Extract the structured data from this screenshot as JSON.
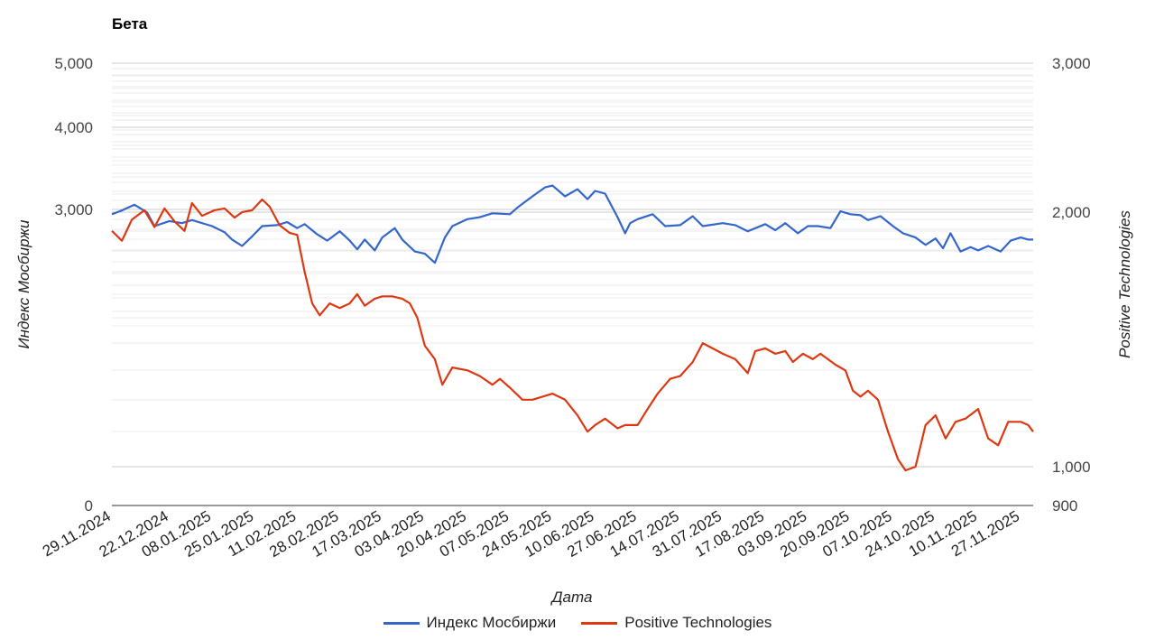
{
  "chart_data": {
    "type": "line",
    "title": "Бета",
    "xlabel": "Дата",
    "y_left_label": "Индекс Мосбиржи",
    "y_right_label": "Positive Technologies",
    "x_tick_labels": [
      "29.11.2024",
      "22.12.2024",
      "08.01.2025",
      "25.01.2025",
      "11.02.2025",
      "28.02.2025",
      "17.03.2025",
      "03.04.2025",
      "20.04.2025",
      "07.05.2025",
      "24.05.2025",
      "10.06.2025",
      "27.06.2025",
      "14.07.2025",
      "31.07.2025",
      "17.08.2025",
      "03.09.2025",
      "20.09.2025",
      "07.10.2025",
      "24.10.2025",
      "10.11.2025",
      "27.11.2025"
    ],
    "y_left_ticks": [
      "0",
      "3,000",
      "4,000",
      "5,000"
    ],
    "y_right_ticks": [
      "900",
      "1,000",
      "2,000",
      "3,000"
    ],
    "y_left_scale": "log",
    "y_right_scale": "log",
    "grid": true,
    "legend_position": "bottom",
    "colors": {
      "moex": "#3366cc",
      "positive": "#dc3912",
      "grid_major": "#cccccc",
      "grid_minor": "#ebebeb"
    },
    "series": [
      {
        "name": "Индекс Мосбиржи",
        "axis": "left",
        "color": "#3366cc",
        "points": [
          [
            "29.11.2024",
            2950
          ],
          [
            "03.12.2024",
            2990
          ],
          [
            "08.12.2024",
            3050
          ],
          [
            "13.12.2024",
            2970
          ],
          [
            "16.12.2024",
            2830
          ],
          [
            "22.12.2024",
            2880
          ],
          [
            "27.12.2024",
            2860
          ],
          [
            "31.12.2024",
            2890
          ],
          [
            "08.01.2025",
            2830
          ],
          [
            "13.01.2025",
            2770
          ],
          [
            "16.01.2025",
            2700
          ],
          [
            "20.01.2025",
            2640
          ],
          [
            "24.01.2025",
            2730
          ],
          [
            "28.01.2025",
            2830
          ],
          [
            "03.02.2025",
            2840
          ],
          [
            "07.02.2025",
            2870
          ],
          [
            "11.02.2025",
            2810
          ],
          [
            "14.02.2025",
            2850
          ],
          [
            "19.02.2025",
            2750
          ],
          [
            "23.02.2025",
            2690
          ],
          [
            "28.02.2025",
            2780
          ],
          [
            "04.03.2025",
            2690
          ],
          [
            "07.03.2025",
            2610
          ],
          [
            "10.03.2025",
            2700
          ],
          [
            "14.03.2025",
            2600
          ],
          [
            "17.03.2025",
            2720
          ],
          [
            "22.03.2025",
            2810
          ],
          [
            "25.03.2025",
            2700
          ],
          [
            "30.03.2025",
            2590
          ],
          [
            "03.04.2025",
            2570
          ],
          [
            "07.04.2025",
            2490
          ],
          [
            "11.04.2025",
            2720
          ],
          [
            "14.04.2025",
            2830
          ],
          [
            "20.04.2025",
            2900
          ],
          [
            "25.04.2025",
            2920
          ],
          [
            "30.04.2025",
            2960
          ],
          [
            "07.05.2025",
            2950
          ],
          [
            "10.05.2025",
            3020
          ],
          [
            "16.05.2025",
            3140
          ],
          [
            "21.05.2025",
            3240
          ],
          [
            "24.05.2025",
            3260
          ],
          [
            "29.05.2025",
            3140
          ],
          [
            "03.06.2025",
            3220
          ],
          [
            "07.06.2025",
            3110
          ],
          [
            "10.06.2025",
            3200
          ],
          [
            "14.06.2025",
            3170
          ],
          [
            "19.06.2025",
            2920
          ],
          [
            "22.06.2025",
            2760
          ],
          [
            "24.06.2025",
            2860
          ],
          [
            "27.06.2025",
            2900
          ],
          [
            "03.07.2025",
            2950
          ],
          [
            "08.07.2025",
            2830
          ],
          [
            "14.07.2025",
            2840
          ],
          [
            "19.07.2025",
            2930
          ],
          [
            "23.07.2025",
            2830
          ],
          [
            "31.07.2025",
            2860
          ],
          [
            "05.08.2025",
            2840
          ],
          [
            "10.08.2025",
            2780
          ],
          [
            "17.08.2025",
            2850
          ],
          [
            "21.08.2025",
            2790
          ],
          [
            "25.08.2025",
            2860
          ],
          [
            "30.08.2025",
            2760
          ],
          [
            "03.09.2025",
            2830
          ],
          [
            "07.09.2025",
            2830
          ],
          [
            "12.09.2025",
            2810
          ],
          [
            "16.09.2025",
            2980
          ],
          [
            "20.09.2025",
            2950
          ],
          [
            "24.09.2025",
            2940
          ],
          [
            "27.09.2025",
            2890
          ],
          [
            "02.10.2025",
            2930
          ],
          [
            "07.10.2025",
            2830
          ],
          [
            "11.10.2025",
            2760
          ],
          [
            "16.10.2025",
            2720
          ],
          [
            "20.10.2025",
            2650
          ],
          [
            "24.10.2025",
            2710
          ],
          [
            "27.10.2025",
            2620
          ],
          [
            "30.10.2025",
            2760
          ],
          [
            "03.11.2025",
            2590
          ],
          [
            "07.11.2025",
            2630
          ],
          [
            "10.11.2025",
            2600
          ],
          [
            "14.11.2025",
            2640
          ],
          [
            "19.11.2025",
            2590
          ],
          [
            "23.11.2025",
            2690
          ],
          [
            "27.11.2025",
            2720
          ],
          [
            "30.11.2025",
            2700
          ],
          [
            "02.12.2025",
            2700
          ]
        ]
      },
      {
        "name": "Positive Technologies",
        "axis": "right",
        "color": "#dc3912",
        "points": [
          [
            "29.11.2024",
            1900
          ],
          [
            "03.12.2024",
            1850
          ],
          [
            "07.12.2024",
            1960
          ],
          [
            "12.12.2024",
            2010
          ],
          [
            "16.12.2024",
            1920
          ],
          [
            "20.12.2024",
            2020
          ],
          [
            "24.12.2024",
            1950
          ],
          [
            "28.12.2024",
            1900
          ],
          [
            "31.12.2024",
            2050
          ],
          [
            "04.01.2025",
            1980
          ],
          [
            "09.01.2025",
            2010
          ],
          [
            "13.01.2025",
            2020
          ],
          [
            "17.01.2025",
            1970
          ],
          [
            "20.01.2025",
            2000
          ],
          [
            "24.01.2025",
            2010
          ],
          [
            "28.01.2025",
            2070
          ],
          [
            "31.01.2025",
            2030
          ],
          [
            "04.02.2025",
            1930
          ],
          [
            "08.02.2025",
            1890
          ],
          [
            "11.02.2025",
            1880
          ],
          [
            "14.02.2025",
            1700
          ],
          [
            "17.02.2025",
            1560
          ],
          [
            "20.02.2025",
            1510
          ],
          [
            "24.02.2025",
            1560
          ],
          [
            "28.02.2025",
            1540
          ],
          [
            "04.03.2025",
            1560
          ],
          [
            "07.03.2025",
            1600
          ],
          [
            "10.03.2025",
            1550
          ],
          [
            "14.03.2025",
            1580
          ],
          [
            "17.03.2025",
            1590
          ],
          [
            "21.03.2025",
            1590
          ],
          [
            "25.03.2025",
            1580
          ],
          [
            "28.03.2025",
            1560
          ],
          [
            "31.03.2025",
            1500
          ],
          [
            "03.04.2025",
            1390
          ],
          [
            "07.04.2025",
            1340
          ],
          [
            "10.04.2025",
            1250
          ],
          [
            "14.04.2025",
            1310
          ],
          [
            "20.04.2025",
            1300
          ],
          [
            "25.04.2025",
            1280
          ],
          [
            "30.04.2025",
            1250
          ],
          [
            "03.05.2025",
            1270
          ],
          [
            "07.05.2025",
            1240
          ],
          [
            "12.05.2025",
            1200
          ],
          [
            "16.05.2025",
            1200
          ],
          [
            "20.05.2025",
            1210
          ],
          [
            "24.05.2025",
            1220
          ],
          [
            "29.05.2025",
            1200
          ],
          [
            "03.06.2025",
            1150
          ],
          [
            "07.06.2025",
            1100
          ],
          [
            "10.06.2025",
            1120
          ],
          [
            "14.06.2025",
            1140
          ],
          [
            "19.06.2025",
            1110
          ],
          [
            "22.06.2025",
            1120
          ],
          [
            "27.06.2025",
            1120
          ],
          [
            "01.07.2025",
            1170
          ],
          [
            "05.07.2025",
            1220
          ],
          [
            "10.07.2025",
            1270
          ],
          [
            "14.07.2025",
            1280
          ],
          [
            "19.07.2025",
            1330
          ],
          [
            "23.07.2025",
            1400
          ],
          [
            "27.07.2025",
            1380
          ],
          [
            "31.07.2025",
            1360
          ],
          [
            "05.08.2025",
            1340
          ],
          [
            "10.08.2025",
            1290
          ],
          [
            "13.08.2025",
            1370
          ],
          [
            "17.08.2025",
            1380
          ],
          [
            "21.08.2025",
            1360
          ],
          [
            "25.08.2025",
            1370
          ],
          [
            "28.08.2025",
            1330
          ],
          [
            "01.09.2025",
            1360
          ],
          [
            "05.09.2025",
            1340
          ],
          [
            "08.09.2025",
            1360
          ],
          [
            "11.09.2025",
            1340
          ],
          [
            "14.09.2025",
            1320
          ],
          [
            "18.09.2025",
            1300
          ],
          [
            "21.09.2025",
            1230
          ],
          [
            "24.09.2025",
            1210
          ],
          [
            "27.09.2025",
            1230
          ],
          [
            "01.10.2025",
            1200
          ],
          [
            "05.10.2025",
            1100
          ],
          [
            "09.10.2025",
            1020
          ],
          [
            "12.10.2025",
            990
          ],
          [
            "16.10.2025",
            1000
          ],
          [
            "20.10.2025",
            1120
          ],
          [
            "24.10.2025",
            1150
          ],
          [
            "28.10.2025",
            1080
          ],
          [
            "01.11.2025",
            1130
          ],
          [
            "05.11.2025",
            1140
          ],
          [
            "10.11.2025",
            1170
          ],
          [
            "14.11.2025",
            1080
          ],
          [
            "18.11.2025",
            1060
          ],
          [
            "22.11.2025",
            1130
          ],
          [
            "27.11.2025",
            1130
          ],
          [
            "30.11.2025",
            1120
          ],
          [
            "02.12.2025",
            1100
          ]
        ]
      }
    ]
  },
  "legend": [
    {
      "label": "Индекс Мосбиржи",
      "color": "#3366cc"
    },
    {
      "label": "Positive Technologies",
      "color": "#dc3912"
    }
  ]
}
